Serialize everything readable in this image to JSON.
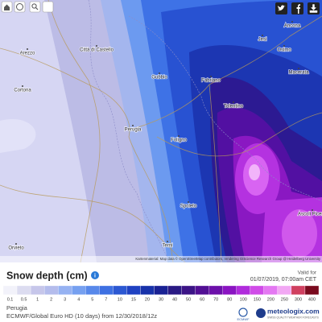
{
  "map": {
    "cities": [
      "Arezzo",
      "Città di Castello",
      "Cortona",
      "Gubbio",
      "Perugia",
      "Fabriano",
      "Jesi",
      "Ancona",
      "Osimo",
      "Macerata",
      "Tolentino",
      "Foligno",
      "Spoleto",
      "Terni",
      "Ascoli Piceno",
      "Orvieto"
    ],
    "attribution": "Kartenmaterial: Map data © OpenStreetMap contributors, rendering GIScience Research Group @ Heidelberg University"
  },
  "legend": {
    "title": "Snow depth (cm)",
    "labels": [
      "0.1",
      "0.5",
      "1",
      "2",
      "3",
      "4",
      "5",
      "7",
      "10",
      "15",
      "20",
      "30",
      "40",
      "50",
      "60",
      "70",
      "80",
      "100",
      "150",
      "200",
      "250",
      "300",
      "400"
    ]
  },
  "valid": {
    "label": "Valid for",
    "datetime": "01/07/2019, 07:00am CET"
  },
  "footer": {
    "location": "Perugia",
    "model": "ECMWF/Global Euro HD (10 days) from 12/30/2018/12z",
    "ecmwf": "ECMWF",
    "brand": "meteologix.com",
    "tagline": "SWISS QUALITY WEATHER FORECASTS"
  }
}
